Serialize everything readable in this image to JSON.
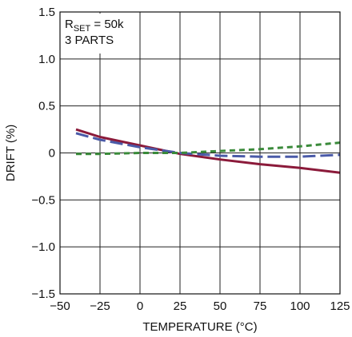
{
  "chart_data": {
    "type": "line",
    "title": "",
    "xlabel": "TEMPERATURE (°C)",
    "ylabel": "DRIFT (%)",
    "xlim": [
      -50,
      125
    ],
    "ylim": [
      -1.5,
      1.5
    ],
    "x_ticks": [
      -50,
      -25,
      0,
      25,
      50,
      75,
      100,
      125
    ],
    "y_ticks": [
      1.5,
      1.0,
      0.5,
      0,
      -0.5,
      -1.0,
      -1.5
    ],
    "x_tick_labels": [
      "−50",
      "−25",
      "0",
      "25",
      "50",
      "75",
      "100",
      "125"
    ],
    "y_tick_labels": [
      "1.5",
      "1.0",
      "0.5",
      "0",
      "−0.5",
      "−1.0",
      "−1.5"
    ],
    "grid": true,
    "annotation": {
      "line1_main": "R",
      "line1_sub": "SET",
      "line1_rest": " = 50k",
      "line2": "3 PARTS"
    },
    "series": [
      {
        "color": "#8b1a3a",
        "dash": "solid",
        "points": [
          [
            -40,
            0.25
          ],
          [
            -25,
            0.17
          ],
          [
            0,
            0.08
          ],
          [
            25,
            -0.01
          ],
          [
            50,
            -0.07
          ],
          [
            75,
            -0.12
          ],
          [
            100,
            -0.16
          ],
          [
            125,
            -0.21
          ]
        ]
      },
      {
        "color": "#4a5aa8",
        "dash": "long-dash",
        "points": [
          [
            -40,
            0.21
          ],
          [
            -25,
            0.14
          ],
          [
            0,
            0.06
          ],
          [
            25,
            0.0
          ],
          [
            50,
            -0.03
          ],
          [
            75,
            -0.04
          ],
          [
            100,
            -0.04
          ],
          [
            125,
            -0.02
          ]
        ]
      },
      {
        "color": "#3a8a3a",
        "dash": "short-dash",
        "points": [
          [
            -40,
            -0.01
          ],
          [
            -25,
            -0.01
          ],
          [
            0,
            0.0
          ],
          [
            25,
            0.0
          ],
          [
            50,
            0.02
          ],
          [
            75,
            0.04
          ],
          [
            100,
            0.07
          ],
          [
            125,
            0.11
          ]
        ]
      }
    ]
  }
}
